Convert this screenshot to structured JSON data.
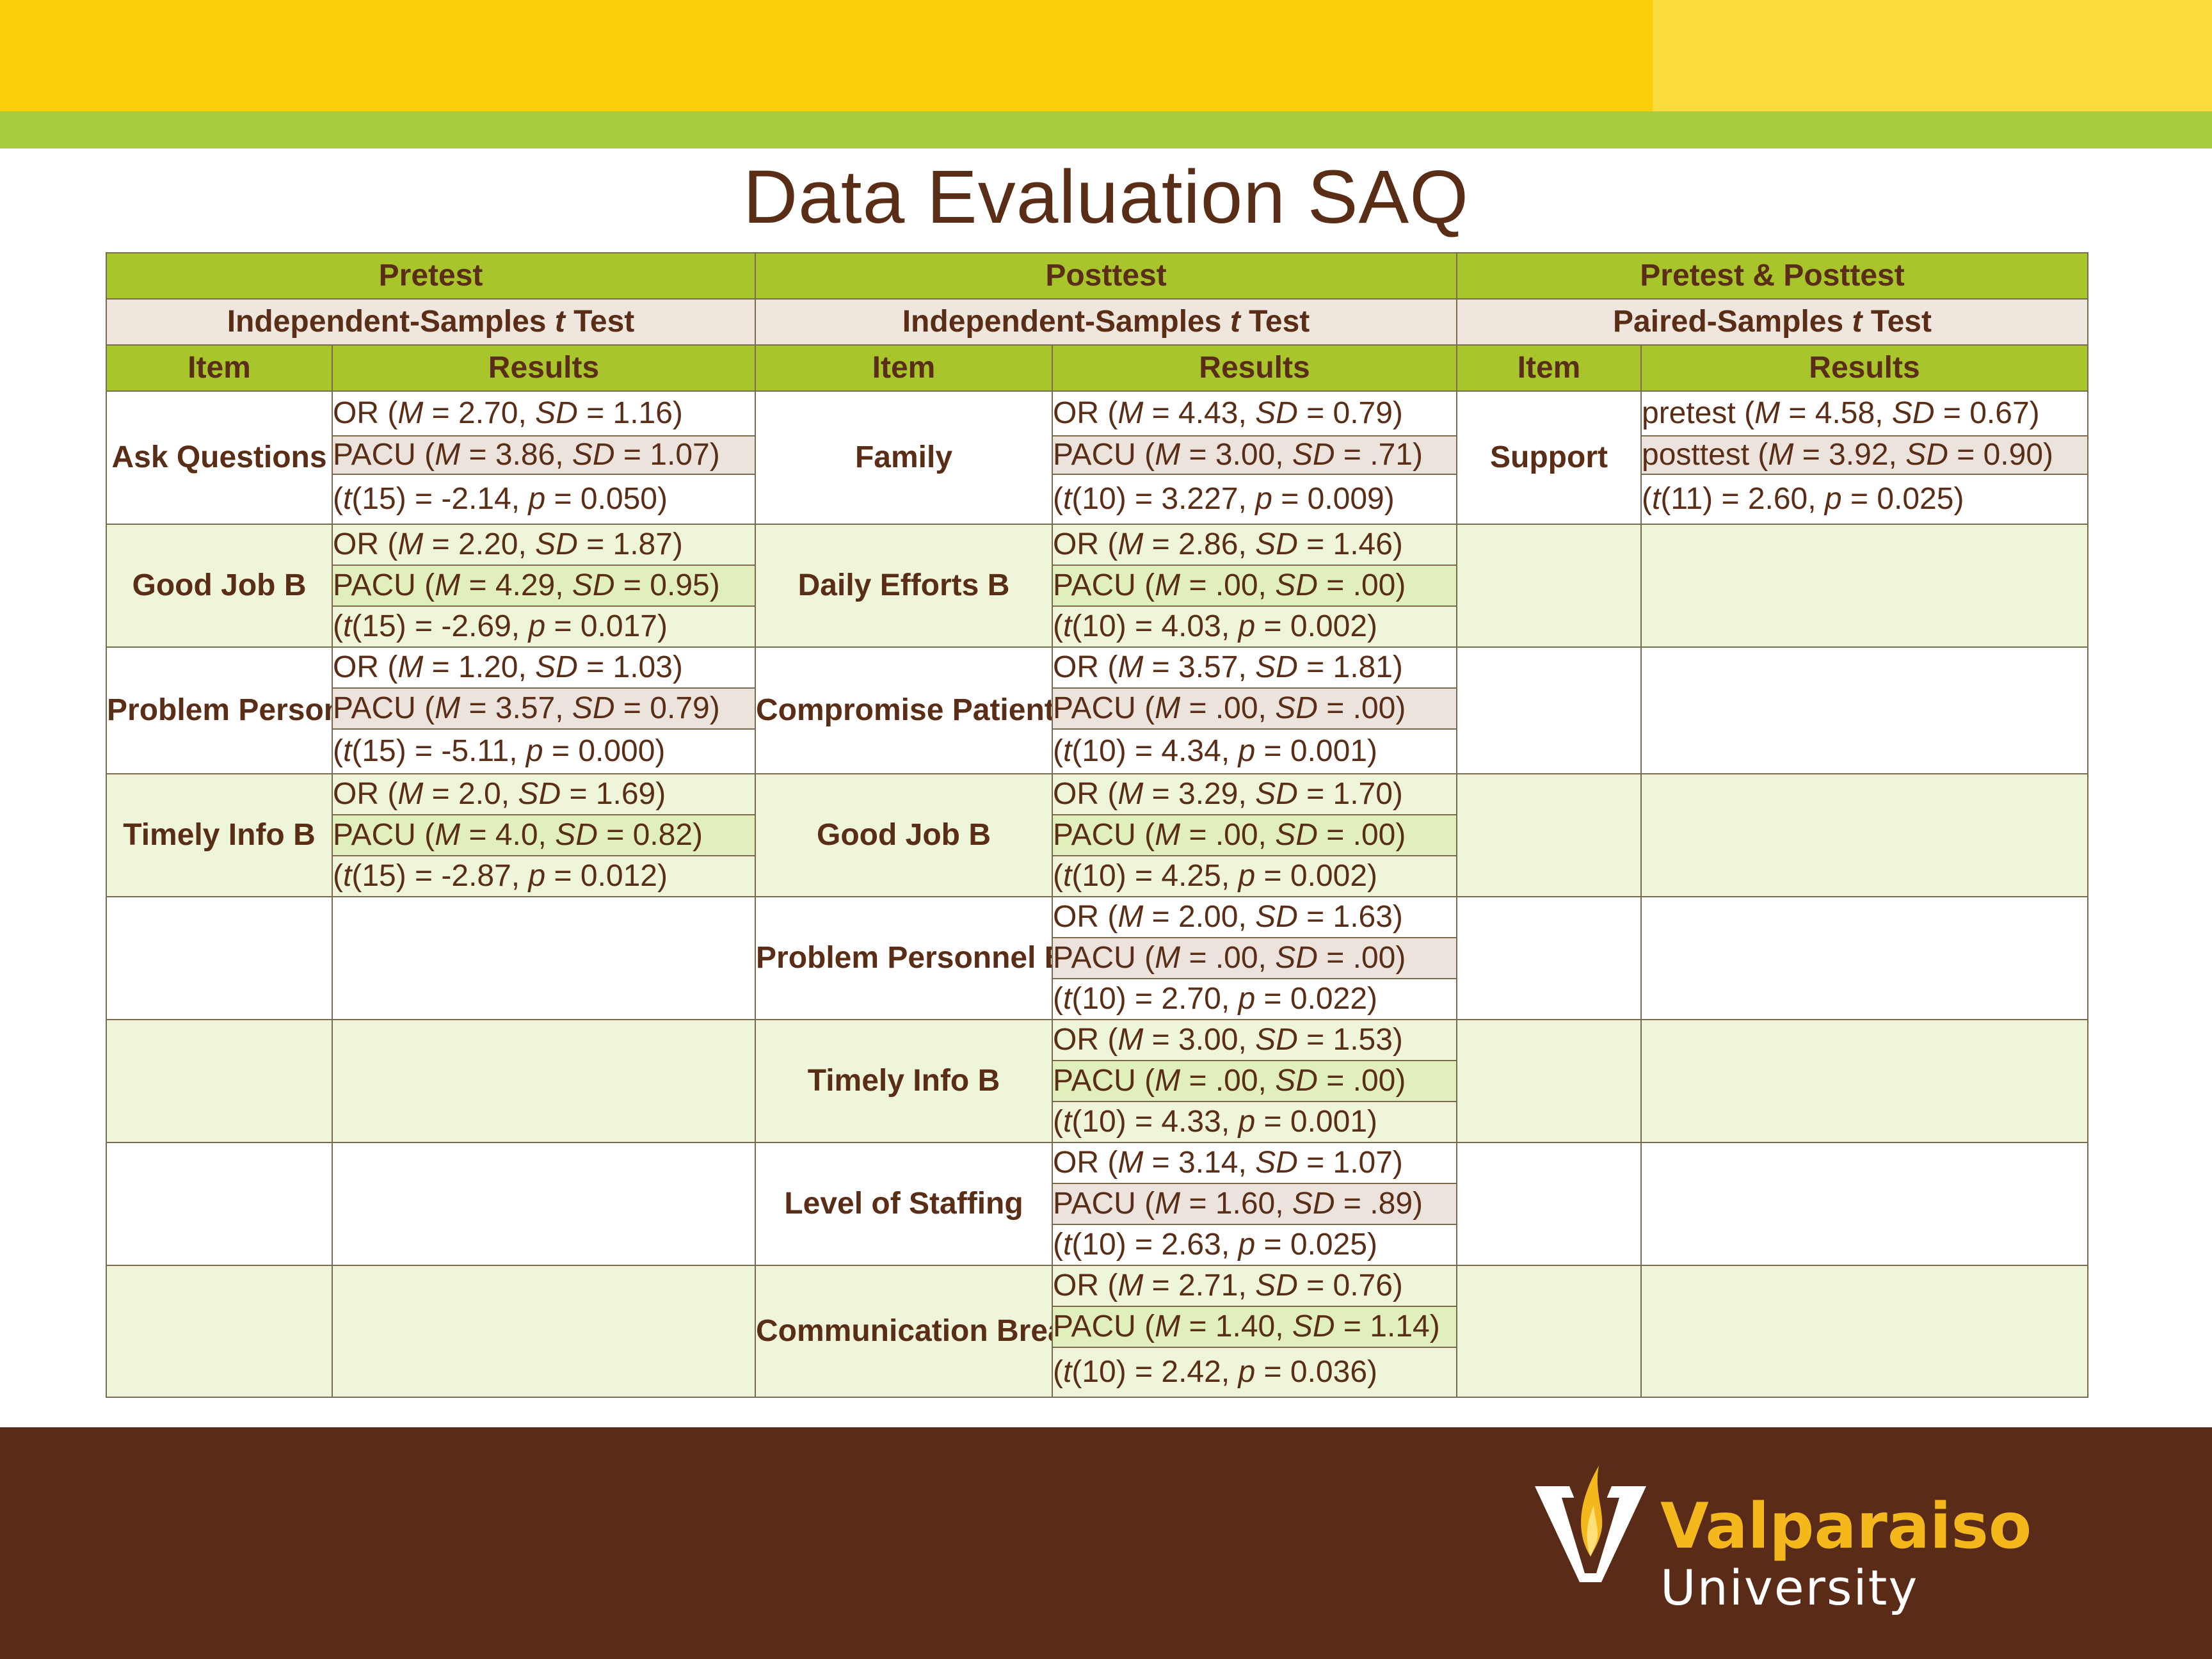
{
  "title": "Data Evaluation SAQ",
  "header": {
    "groups": [
      "Pretest",
      "Posttest",
      "Pretest & Posttest"
    ],
    "tests": [
      {
        "pre": "Independent-Samples ",
        "t": "t",
        "post": " Test"
      },
      {
        "pre": "Independent-Samples ",
        "t": "t",
        "post": " Test"
      },
      {
        "pre": "Paired-Samples ",
        "t": "t",
        "post": " Test"
      }
    ],
    "item_label": "Item",
    "results_label": "Results"
  },
  "pretest": [
    {
      "item": "Ask Questions",
      "or": "OR (M = 2.70, SD = 1.16)",
      "pacu": "PACU (M = 3.86, SD = 1.07)",
      "t": "(t(15) = -2.14, p = 0.050)"
    },
    {
      "item": "Good Job B",
      "or": "OR (M = 2.20, SD = 1.87)",
      "pacu": "PACU (M = 4.29, SD = 0.95)",
      "t": "(t(15) = -2.69, p = 0.017)"
    },
    {
      "item": "Problem Personnel B",
      "or": "OR (M = 1.20, SD = 1.03)",
      "pacu": "PACU (M = 3.57, SD = 0.79)",
      "t": "(t(15) = -5.11, p = 0.000)"
    },
    {
      "item": "Timely Info B",
      "or": "OR (M = 2.0, SD = 1.69)",
      "pacu": "PACU (M = 4.0, SD = 0.82)",
      "t": "(t(15) = -2.87, p = 0.012)"
    }
  ],
  "posttest": [
    {
      "item": "Family",
      "or": "OR (M = 4.43, SD = 0.79)",
      "pacu": "PACU (M = 3.00, SD = .71)",
      "t": "(t(10) = 3.227, p = 0.009)"
    },
    {
      "item": "Daily Efforts B",
      "or": "OR (M = 2.86, SD = 1.46)",
      "pacu": "PACU (M = .00, SD = .00)",
      "t": "(t(10) = 4.03, p = 0.002)"
    },
    {
      "item": "Compromise Patient Safety B",
      "or": "OR (M = 3.57, SD = 1.81)",
      "pacu": "PACU (M = .00, SD = .00)",
      "t": "(t(10) = 4.34, p = 0.001)"
    },
    {
      "item": "Good Job B",
      "or": "OR (M = 3.29, SD = 1.70)",
      "pacu": "PACU (M = .00, SD = .00)",
      "t": "(t(10) = 4.25, p = 0.002)"
    },
    {
      "item": "Problem Personnel B",
      "or": "OR (M = 2.00, SD = 1.63)",
      "pacu": "PACU (M = .00, SD = .00)",
      "t": "(t(10) = 2.70, p = 0.022)"
    },
    {
      "item": "Timely Info B",
      "or": "OR (M = 3.00, SD = 1.53)",
      "pacu": "PACU (M = .00, SD = .00)",
      "t": "(t(10) = 4.33, p = 0.001)"
    },
    {
      "item": "Level of Staffing",
      "or": "OR (M = 3.14, SD = 1.07)",
      "pacu": "PACU (M = 1.60, SD = .89)",
      "t": "(t(10) = 2.63, p = 0.025)"
    },
    {
      "item": "Communication Breakdowns",
      "or": "OR (M = 2.71, SD = 0.76)",
      "pacu": "PACU (M = 1.40, SD = 1.14)",
      "t": "(t(10) = 2.42, p = 0.036)"
    }
  ],
  "paired": [
    {
      "item": "Support",
      "pre": "pretest (M = 4.58, SD = 0.67)",
      "post": "posttest (M = 3.92, SD = 0.90)",
      "t": "(t(11) = 2.60, p = 0.025)"
    }
  ],
  "logo": {
    "name": "Valparaiso",
    "sub": "University"
  },
  "colors": {
    "title_text": "#5a2d17",
    "header_green": "#a8c62b",
    "subheader_tan": "#efe6dd",
    "row_light_green": "#eef5d8",
    "top_yellow": "#fccf0c",
    "top_green": "#a8cb3b",
    "footer_brown": "#5a2b17",
    "logo_gold": "#f4b81d"
  }
}
